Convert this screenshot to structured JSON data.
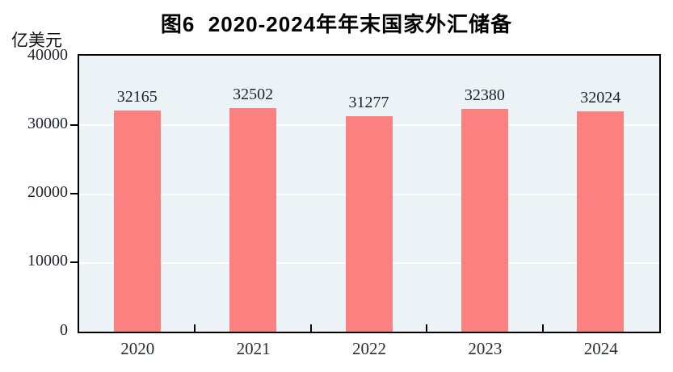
{
  "chart_data": {
    "type": "bar",
    "title": "图6  2020-2024年年末国家外汇储备",
    "unit_label": "亿美元",
    "categories": [
      "2020",
      "2021",
      "2022",
      "2023",
      "2024"
    ],
    "values": [
      32165,
      32502,
      31277,
      32380,
      32024
    ],
    "series_name": "年末国家外汇储备",
    "xlabel": "",
    "ylabel": "亿美元",
    "ylim": [
      0,
      40000
    ],
    "yticks": [
      0,
      10000,
      20000,
      30000,
      40000
    ],
    "grid": "horizontal white gridlines on",
    "legend": "none",
    "colors": {
      "bar_fill": "#FB8080",
      "plot_background": "#ECF3F7",
      "axis_border": "#000000",
      "gridline": "#FFFFFF",
      "text": "#1E2230"
    }
  }
}
